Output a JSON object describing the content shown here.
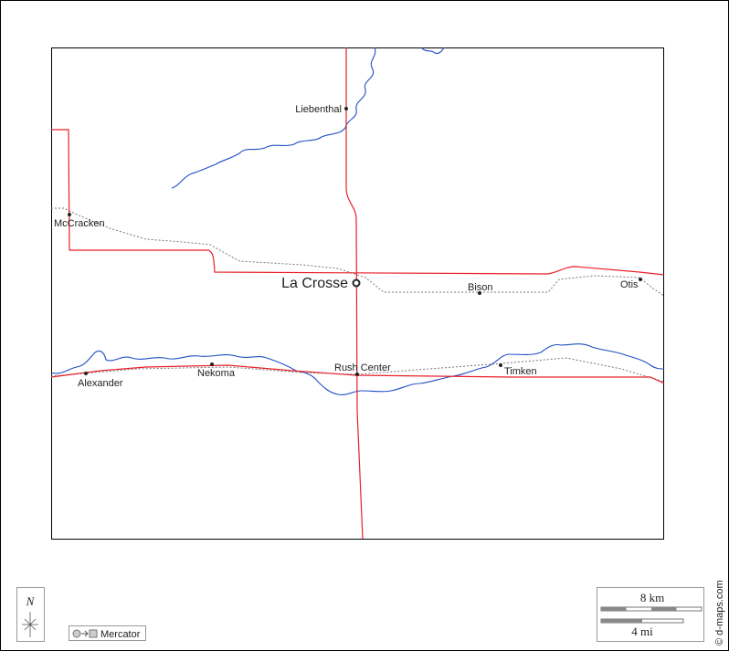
{
  "places": [
    "Liebenthal",
    "McCracken",
    "Bison",
    "Otis",
    "Rush Center",
    "Alexander",
    "Nekoma",
    "Timken"
  ],
  "seat": "La Crosse",
  "compass": "N",
  "projection": "Mercator",
  "scale": {
    "km": "8 km",
    "mi": "4 mi"
  },
  "credit": "© d-maps.com"
}
